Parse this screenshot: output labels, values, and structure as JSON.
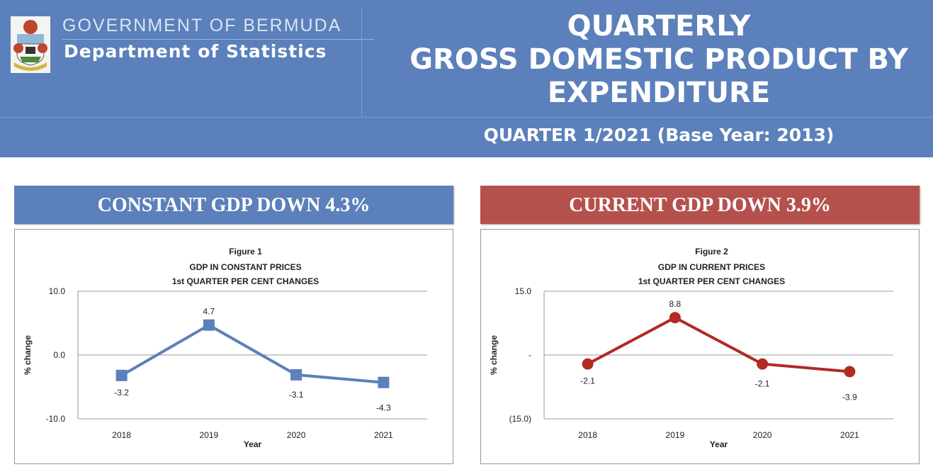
{
  "header": {
    "org": "GOVERNMENT OF BERMUDA",
    "dept": "Department of Statistics",
    "title_lines": [
      "QUARTERLY",
      "GROSS DOMESTIC PRODUCT BY",
      "EXPENDITURE"
    ],
    "subtitle": "QUARTER 1/2021 (Base Year: 2013)",
    "color": "#5b80bb"
  },
  "banners": {
    "constant": "CONSTANT GDP DOWN 4.3%",
    "current": "CURRENT GDP DOWN 3.9%",
    "constant_color": "#5b80bb",
    "current_color": "#b5514d"
  },
  "chart_data": [
    {
      "type": "line",
      "figure": "Figure 1",
      "title": "GDP IN CONSTANT PRICES",
      "subtitle": "1st QUARTER PER CENT CHANGES",
      "xlabel": "Year",
      "ylabel": "%  change",
      "categories": [
        "2018",
        "2019",
        "2020",
        "2021"
      ],
      "values": [
        -3.2,
        4.7,
        -3.1,
        -4.3
      ],
      "data_labels": [
        "-3.2",
        "4.7",
        "-3.1",
        "-4.3"
      ],
      "ylim": [
        -10,
        10
      ],
      "yticks": [
        -10,
        0,
        10
      ],
      "ytick_labels": [
        "-10.0",
        "0.0",
        "10.0"
      ],
      "marker": "square",
      "color": "#5b80bb",
      "grid": true
    },
    {
      "type": "line",
      "figure": "Figure 2",
      "title": "GDP IN CURRENT PRICES",
      "subtitle": "1st QUARTER PER CENT CHANGES",
      "xlabel": "Year",
      "ylabel": "%  change",
      "categories": [
        "2018",
        "2019",
        "2020",
        "2021"
      ],
      "values": [
        -2.1,
        8.8,
        -2.1,
        -3.9
      ],
      "data_labels": [
        "-2.1",
        "8.8",
        "-2.1",
        "-3.9"
      ],
      "ylim": [
        -15,
        15
      ],
      "yticks": [
        -15,
        0,
        15
      ],
      "ytick_labels": [
        "(15.0)",
        "-",
        "15.0"
      ],
      "marker": "circle",
      "color": "#b22a24",
      "grid": true
    }
  ]
}
